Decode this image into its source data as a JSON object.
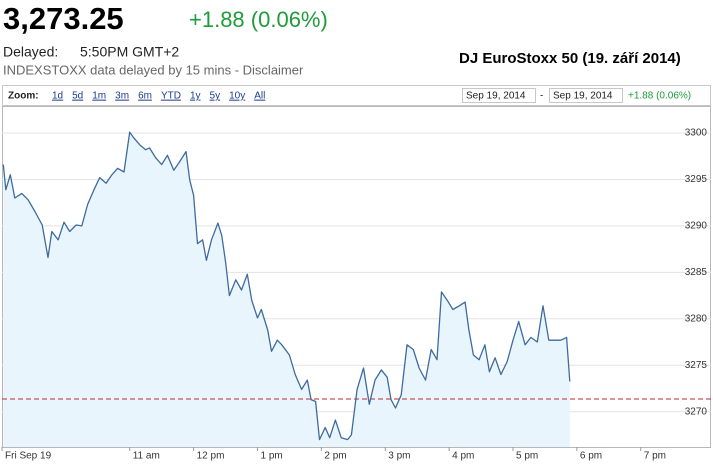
{
  "header": {
    "price": "3,273.25",
    "change": "+1.88 (0.06%)",
    "delayed_label": "Delayed:",
    "time": "5:50PM GMT+2",
    "source_note": "INDEXSTOXX data delayed by 15 mins - Disclaimer",
    "caption": "DJ EuroStoxx 50 (19. září 2014)"
  },
  "toolbar": {
    "zoom_label": "Zoom:",
    "zoom_options": [
      "1d",
      "5d",
      "1m",
      "3m",
      "6m",
      "YTD",
      "1y",
      "5y",
      "10y",
      "All"
    ],
    "range_start": "Sep 19, 2014",
    "range_separator": "-",
    "range_end": "Sep 19, 2014",
    "range_change": "+1.88 (0.06%)"
  },
  "chart_data": {
    "type": "line",
    "x": [
      9.02,
      9.06,
      9.13,
      9.2,
      9.31,
      9.41,
      9.52,
      9.63,
      9.72,
      9.78,
      9.88,
      9.97,
      10.06,
      10.16,
      10.25,
      10.34,
      10.44,
      10.53,
      10.63,
      10.72,
      10.81,
      10.91,
      11.0,
      11.06,
      11.16,
      11.25,
      11.31,
      11.41,
      11.5,
      11.59,
      11.69,
      11.78,
      11.88,
      11.94,
      12.0,
      12.06,
      12.14,
      12.2,
      12.28,
      12.38,
      12.44,
      12.5,
      12.56,
      12.66,
      12.75,
      12.84,
      12.91,
      13.0,
      13.06,
      13.16,
      13.22,
      13.31,
      13.38,
      13.5,
      13.59,
      13.69,
      13.78,
      13.84,
      13.91,
      13.97,
      14.06,
      14.13,
      14.22,
      14.31,
      14.41,
      14.47,
      14.56,
      14.66,
      14.75,
      14.84,
      14.94,
      15.03,
      15.09,
      15.16,
      15.25,
      15.34,
      15.44,
      15.53,
      15.63,
      15.72,
      15.81,
      15.88,
      15.97,
      16.06,
      16.16,
      16.25,
      16.31,
      16.38,
      16.47,
      16.56,
      16.63,
      16.72,
      16.81,
      16.91,
      17.0,
      17.09,
      17.19,
      17.28,
      17.38,
      17.47,
      17.56,
      17.66,
      17.75,
      17.84,
      17.89
    ],
    "values": [
      3296.6,
      3293.9,
      3295.5,
      3293.0,
      3293.5,
      3292.8,
      3291.5,
      3290.1,
      3286.6,
      3289.4,
      3288.5,
      3290.4,
      3289.4,
      3290.1,
      3290.0,
      3292.3,
      3293.9,
      3295.2,
      3294.6,
      3295.5,
      3296.2,
      3295.8,
      3300.1,
      3299.5,
      3298.7,
      3298.2,
      3298.4,
      3297.3,
      3296.6,
      3297.6,
      3296.0,
      3296.9,
      3298.0,
      3294.9,
      3293.3,
      3288.1,
      3288.5,
      3286.3,
      3288.5,
      3290.3,
      3289.0,
      3286.1,
      3282.5,
      3284.2,
      3283.1,
      3284.8,
      3282.0,
      3280.1,
      3281.0,
      3278.8,
      3276.5,
      3277.7,
      3277.2,
      3276.1,
      3274.0,
      3272.4,
      3273.4,
      3271.3,
      3271.1,
      3267.0,
      3268.3,
      3267.2,
      3269.1,
      3267.2,
      3267.0,
      3267.5,
      3272.4,
      3274.7,
      3270.8,
      3273.4,
      3274.5,
      3273.7,
      3271.3,
      3270.4,
      3271.8,
      3277.2,
      3276.7,
      3274.7,
      3273.4,
      3276.7,
      3275.6,
      3282.9,
      3282.0,
      3281.0,
      3281.4,
      3281.8,
      3278.8,
      3276.1,
      3275.6,
      3277.2,
      3274.3,
      3275.8,
      3274.0,
      3275.4,
      3277.7,
      3279.7,
      3277.2,
      3278.0,
      3277.5,
      3281.4,
      3277.7,
      3277.7,
      3277.7,
      3278.0,
      3273.25
    ],
    "color": "#3e6b9f",
    "fill_color": "#e8f5fc",
    "previous_close": 3271.37,
    "previous_close_color": "#c0262d",
    "xlim": [
      9,
      20.1
    ],
    "ylim": [
      3266.2,
      3302.8
    ],
    "xticks": [
      {
        "value": 9,
        "label": "Fri Sep 19"
      },
      {
        "value": 11,
        "label": "11 am"
      },
      {
        "value": 12,
        "label": "12 pm"
      },
      {
        "value": 13,
        "label": "1 pm"
      },
      {
        "value": 14,
        "label": "2 pm"
      },
      {
        "value": 15,
        "label": "3 pm"
      },
      {
        "value": 16,
        "label": "4 pm"
      },
      {
        "value": 17,
        "label": "5 pm"
      },
      {
        "value": 18,
        "label": "6 pm"
      },
      {
        "value": 19,
        "label": "7 pm"
      }
    ],
    "yticks": [
      3270,
      3275,
      3280,
      3285,
      3290,
      3295,
      3300
    ],
    "grid": true
  }
}
